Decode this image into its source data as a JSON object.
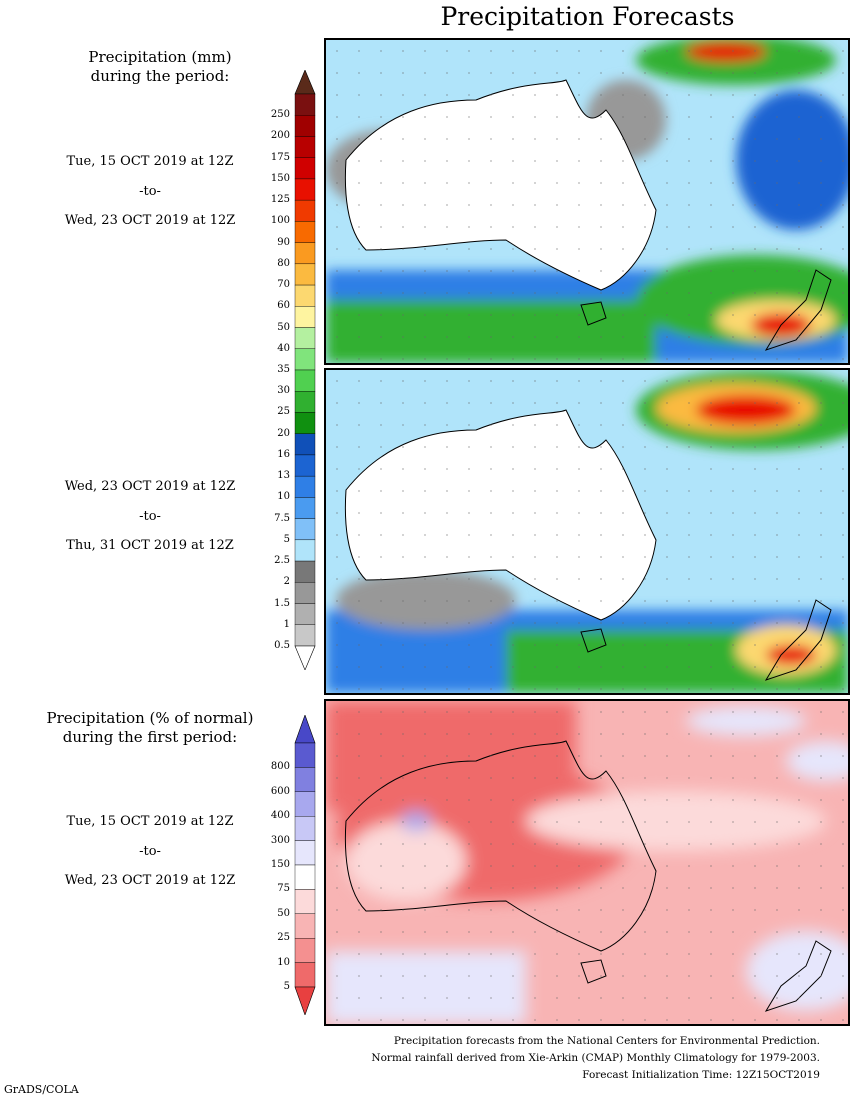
{
  "title": "Precipitation Forecasts",
  "panel1": {
    "label_line1": "Precipitation (mm)",
    "label_line2": "during the period:",
    "start": "Tue, 15 OCT 2019 at 12Z",
    "to": "-to-",
    "end": "Wed, 23 OCT 2019 at 12Z"
  },
  "panel2": {
    "start": "Wed, 23 OCT 2019 at 12Z",
    "to": "-to-",
    "end": "Thu, 31 OCT 2019 at 12Z"
  },
  "panel3": {
    "label_line1": "Precipitation (% of normal)",
    "label_line2": "during the first period:",
    "start": "Tue, 15 OCT 2019 at 12Z",
    "to": "-to-",
    "end": "Wed, 23 OCT 2019 at 12Z"
  },
  "precip_scale": {
    "labels": [
      "250",
      "200",
      "175",
      "150",
      "125",
      "100",
      "90",
      "80",
      "70",
      "60",
      "50",
      "40",
      "35",
      "30",
      "25",
      "20",
      "16",
      "13",
      "10",
      "7.5",
      "5",
      "2.5",
      "2",
      "1.5",
      "1",
      "0.5"
    ],
    "colors": [
      "#7a1010",
      "#a00000",
      "#b80000",
      "#d00000",
      "#e81000",
      "#f03a00",
      "#f86a00",
      "#fa9a20",
      "#fbba40",
      "#fcd870",
      "#fef4a0",
      "#b4f0a0",
      "#80e47c",
      "#50d050",
      "#30b030",
      "#109010",
      "#1050b8",
      "#1c64d2",
      "#2f7fe6",
      "#4a9bf0",
      "#80c0f8",
      "#b0e4fa",
      "#787878",
      "#989898",
      "#b0b0b0",
      "#c8c8c8"
    ],
    "top_arrow_color": "#5a2a1a",
    "bottom_arrow_color": "#ffffff"
  },
  "pct_scale": {
    "labels": [
      "800",
      "600",
      "400",
      "300",
      "150",
      "75",
      "50",
      "25",
      "10",
      "5"
    ],
    "colors": [
      "#5a5ad0",
      "#8080e0",
      "#a8a8ee",
      "#c8c8f6",
      "#e6e6fc",
      "#ffffff",
      "#fcdada",
      "#f8b4b4",
      "#f49090",
      "#ef6a6a"
    ],
    "top_arrow_color": "#4848c8",
    "bottom_arrow_color": "#e84040"
  },
  "credits": {
    "line1": "Precipitation forecasts from the National Centers for Environmental Prediction.",
    "line2": "Normal rainfall derived from Xie-Arkin (CMAP) Monthly Climatology for 1979-2003.",
    "line3": "Forecast Initialization Time: 12Z15OCT2019"
  },
  "grads_label": "GrADS/COLA"
}
